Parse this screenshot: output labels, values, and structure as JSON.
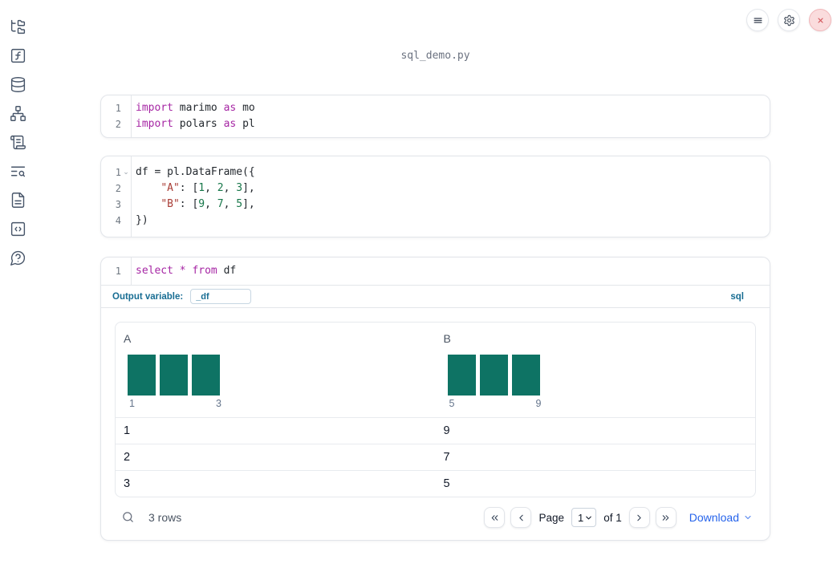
{
  "colors": {
    "keyword": "#a626a4",
    "string": "#a93d36",
    "number": "#17774a",
    "bar": "#0e7364",
    "accent_blue": "#186d93",
    "link": "#2563eb",
    "close_bg": "#fadcdd",
    "close_border": "#f1b6b9",
    "close_x": "#d25459"
  },
  "window": {
    "filename": "sql_demo.py"
  },
  "sidebar": {
    "icons": [
      "file-tree",
      "function-square",
      "database",
      "dependency-graph",
      "scroll-logs",
      "list-search",
      "document",
      "code-snippet",
      "help-chat"
    ]
  },
  "topbar": {
    "icons": [
      "hamburger-menu",
      "gear-settings",
      "close-shutdown"
    ]
  },
  "cells": [
    {
      "lines": [
        {
          "n": "1",
          "tokens": [
            [
              "import",
              "kw"
            ],
            [
              " marimo ",
              "pl"
            ],
            [
              "as",
              "kw"
            ],
            [
              " mo",
              "pl"
            ]
          ]
        },
        {
          "n": "2",
          "tokens": [
            [
              "import",
              "kw"
            ],
            [
              " polars ",
              "pl"
            ],
            [
              "as",
              "kw"
            ],
            [
              " pl",
              "pl"
            ]
          ]
        }
      ]
    },
    {
      "lines": [
        {
          "n": "1",
          "fold": true,
          "tokens": [
            [
              "df = pl.DataFrame({",
              "pl"
            ]
          ]
        },
        {
          "n": "2",
          "tokens": [
            [
              "    ",
              "pl"
            ],
            [
              "\"A\"",
              "str"
            ],
            [
              ": [",
              "pl"
            ],
            [
              "1",
              "num"
            ],
            [
              ", ",
              "pl"
            ],
            [
              "2",
              "num"
            ],
            [
              ", ",
              "pl"
            ],
            [
              "3",
              "num"
            ],
            [
              "],",
              "pl"
            ]
          ]
        },
        {
          "n": "3",
          "tokens": [
            [
              "    ",
              "pl"
            ],
            [
              "\"B\"",
              "str"
            ],
            [
              ": [",
              "pl"
            ],
            [
              "9",
              "num"
            ],
            [
              ", ",
              "pl"
            ],
            [
              "7",
              "num"
            ],
            [
              ", ",
              "pl"
            ],
            [
              "5",
              "num"
            ],
            [
              "],",
              "pl"
            ]
          ]
        },
        {
          "n": "4",
          "tokens": [
            [
              "})",
              "pl"
            ]
          ]
        }
      ]
    },
    {
      "lines": [
        {
          "n": "1",
          "tokens": [
            [
              "select",
              "kw"
            ],
            [
              " ",
              "pl"
            ],
            [
              "*",
              "kw"
            ],
            [
              " ",
              "pl"
            ],
            [
              "from",
              "kw"
            ],
            [
              " df",
              "pl"
            ]
          ]
        }
      ]
    }
  ],
  "sql_cell": {
    "output_variable_label": "Output variable:",
    "output_variable_value": "_df",
    "language_badge": "sql"
  },
  "output_table": {
    "columns": [
      "A",
      "B"
    ],
    "rows": [
      [
        "1",
        "9"
      ],
      [
        "2",
        "7"
      ],
      [
        "3",
        "5"
      ]
    ],
    "histograms": [
      {
        "column": "A",
        "values": [
          1,
          2,
          3
        ],
        "counts": [
          1,
          1,
          1
        ],
        "min_label": "1",
        "max_label": "3"
      },
      {
        "column": "B",
        "values": [
          5,
          7,
          9
        ],
        "counts": [
          1,
          1,
          1
        ],
        "min_label": "5",
        "max_label": "9"
      }
    ],
    "row_count": "3 rows",
    "pagination": {
      "page_label": "Page",
      "page_value": "1",
      "of_label": "of 1"
    },
    "download_label": "Download"
  }
}
